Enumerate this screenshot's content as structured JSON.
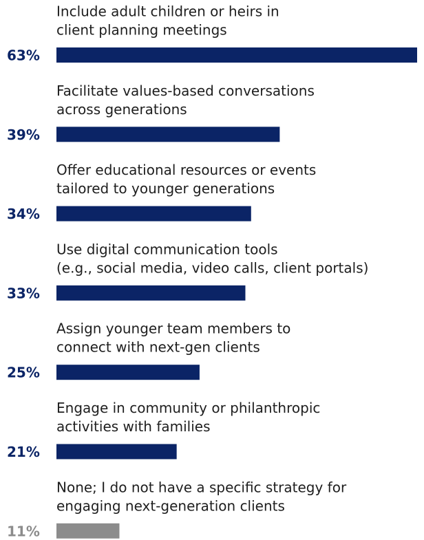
{
  "chart_data": {
    "type": "bar",
    "categories": [
      [
        "Include adult children or heirs in",
        "client planning meetings"
      ],
      [
        "Facilitate values-based conversations",
        "across generations"
      ],
      [
        "Offer educational resources or events",
        "tailored to younger generations"
      ],
      [
        "Use digital communication tools",
        "(e.g., social media, video calls, client portals)"
      ],
      [
        "Assign younger team members to",
        "connect with next-gen clients"
      ],
      [
        "Engage in community or philanthropic",
        "activities with families"
      ],
      [
        "None; I do not have a specific strategy for",
        "engaging next-generation clients"
      ]
    ],
    "values": [
      63,
      39,
      34,
      33,
      25,
      21,
      11
    ],
    "value_labels": [
      "63%",
      "39%",
      "34%",
      "33%",
      "25%",
      "21%",
      "11%"
    ],
    "colors": [
      "#0b2466",
      "#0b2466",
      "#0b2466",
      "#0b2466",
      "#0b2466",
      "#0b2466",
      "#8c8c8c"
    ]
  }
}
